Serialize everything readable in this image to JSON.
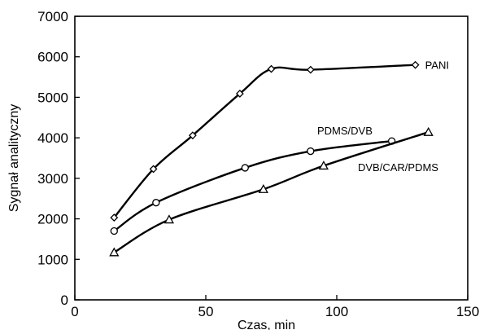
{
  "chart_data": {
    "type": "line",
    "title": "",
    "xlabel": "Czas, min",
    "ylabel": "Sygnał analityczny",
    "xlim": [
      0,
      150
    ],
    "ylim": [
      0,
      7000
    ],
    "xticks": [
      0,
      50,
      100,
      150
    ],
    "yticks": [
      0,
      1000,
      2000,
      3000,
      4000,
      5000,
      6000,
      7000
    ],
    "grid": false,
    "series": [
      {
        "name": "PANI",
        "marker": "diamond",
        "x": [
          15,
          30,
          45,
          63,
          75,
          90,
          130
        ],
        "y": [
          2030,
          3230,
          4060,
          5090,
          5700,
          5680,
          5800
        ]
      },
      {
        "name": "PDMS/DVB",
        "marker": "circle",
        "x": [
          15,
          31,
          65,
          90,
          121
        ],
        "y": [
          1700,
          2400,
          3260,
          3670,
          3920
        ]
      },
      {
        "name": "DVB/CAR/PDMS",
        "marker": "triangle",
        "x": [
          15,
          36,
          72,
          95,
          135
        ],
        "y": [
          1170,
          1980,
          2730,
          3310,
          4140
        ]
      }
    ]
  }
}
